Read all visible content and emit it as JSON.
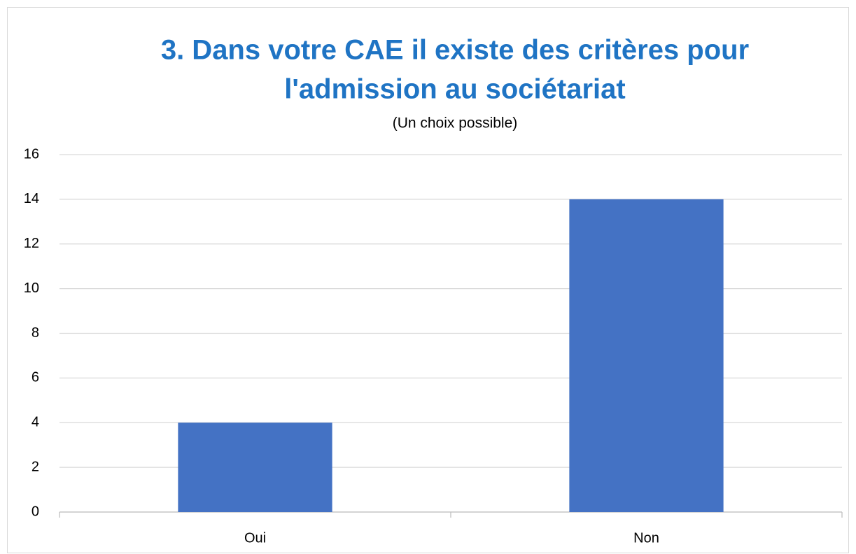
{
  "chart_data": {
    "type": "bar",
    "title": [
      "3. Dans votre CAE il existe des critères pour",
      "l'admission au sociétariat"
    ],
    "subtitle": "(Un choix possible)",
    "categories": [
      "Oui",
      "Non"
    ],
    "values": [
      4,
      14
    ],
    "color": "#4472c4",
    "ylim": [
      0,
      16
    ],
    "yticks": [
      0,
      2,
      4,
      6,
      8,
      10,
      12,
      14,
      16
    ],
    "grid": true
  }
}
